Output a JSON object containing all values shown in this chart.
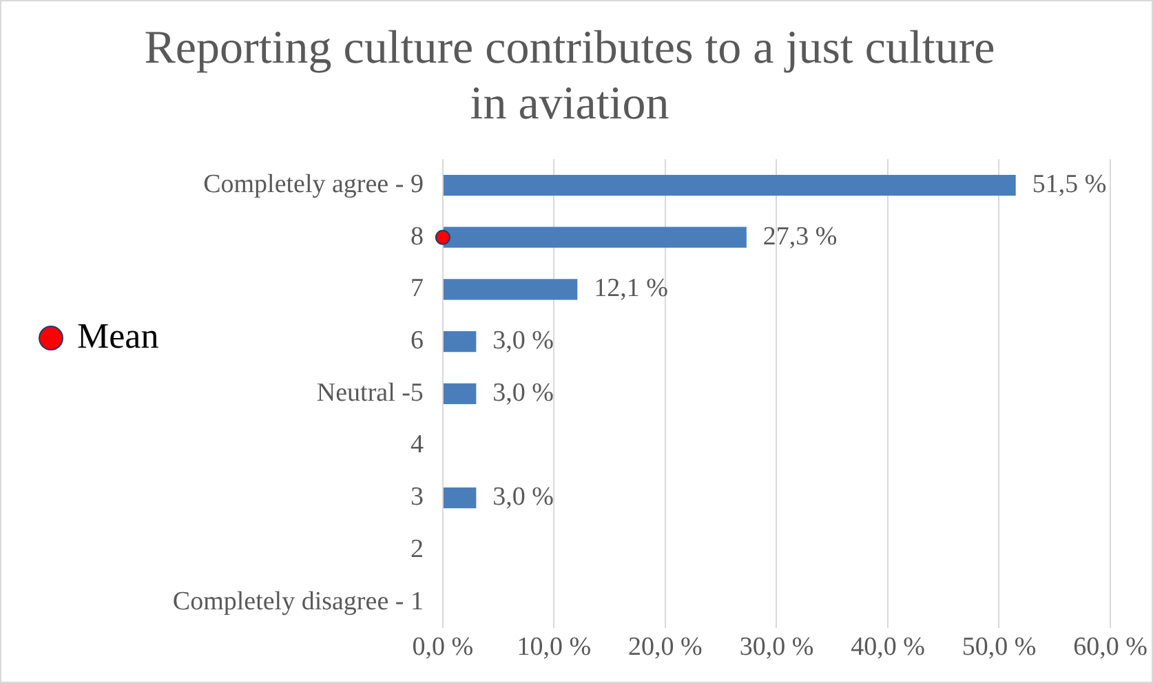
{
  "chart_data": {
    "type": "bar",
    "orientation": "horizontal",
    "title": "Reporting culture contributes to a just culture in aviation",
    "categories": [
      "Completely agree - 9",
      "8",
      "7",
      "6",
      "Neutral -5",
      "4",
      "3",
      "2",
      "Completely disagree - 1"
    ],
    "series": [
      {
        "color": "#4a7ebb",
        "values": [
          51.5,
          27.3,
          12.1,
          3.0,
          3.0,
          0,
          3.0,
          0,
          0
        ],
        "value_labels": [
          "51,5 %",
          "27,3 %",
          "12,1 %",
          "3,0 %",
          "3,0 %",
          null,
          "3,0 %",
          null,
          null
        ]
      },
      {
        "type": "scatter",
        "name": "Mean",
        "color": "#ff0000",
        "x": [
          "8"
        ],
        "values": [
          0
        ]
      }
    ],
    "xlim": [
      0,
      60
    ],
    "xticks": [
      {
        "value": 0,
        "label": "0,0 %"
      },
      {
        "value": 10,
        "label": "10,0 %"
      },
      {
        "value": 20,
        "label": "20,0 %"
      },
      {
        "value": 30,
        "label": "30,0 %"
      },
      {
        "value": 40,
        "label": "40,0 %"
      },
      {
        "value": 50,
        "label": "50,0 %"
      },
      {
        "value": 60,
        "label": "60,0 %"
      }
    ],
    "grid": "x",
    "legend": "left",
    "marker": "circle"
  }
}
